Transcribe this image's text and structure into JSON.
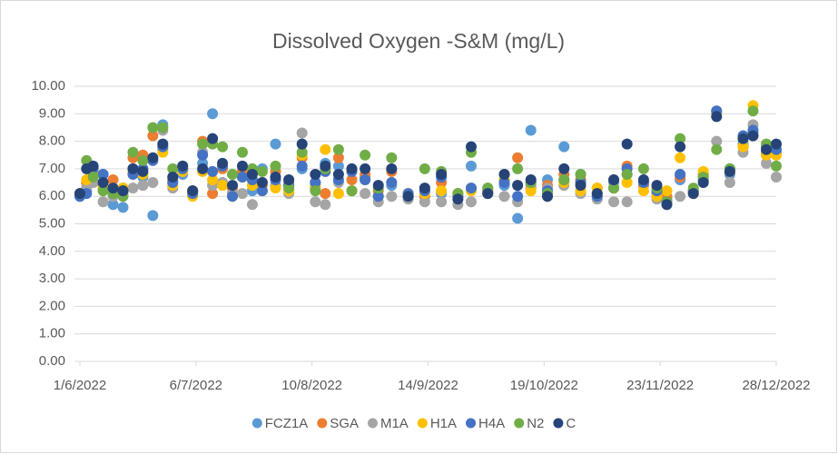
{
  "chart_data": {
    "type": "scatter",
    "title": "Dissolved Oxygen -S&M (mg/L)",
    "x": [
      "2022-06-01",
      "2022-06-03",
      "2022-06-05",
      "2022-06-08",
      "2022-06-11",
      "2022-06-14",
      "2022-06-17",
      "2022-06-20",
      "2022-06-23",
      "2022-06-26",
      "2022-06-29",
      "2022-07-02",
      "2022-07-05",
      "2022-07-08",
      "2022-07-11",
      "2022-07-14",
      "2022-07-17",
      "2022-07-20",
      "2022-07-23",
      "2022-07-26",
      "2022-07-30",
      "2022-08-03",
      "2022-08-07",
      "2022-08-11",
      "2022-08-14",
      "2022-08-18",
      "2022-08-22",
      "2022-08-26",
      "2022-08-30",
      "2022-09-03",
      "2022-09-08",
      "2022-09-13",
      "2022-09-18",
      "2022-09-23",
      "2022-09-27",
      "2022-10-02",
      "2022-10-07",
      "2022-10-11",
      "2022-10-15",
      "2022-10-20",
      "2022-10-25",
      "2022-10-30",
      "2022-11-04",
      "2022-11-09",
      "2022-11-13",
      "2022-11-18",
      "2022-11-22",
      "2022-11-25",
      "2022-11-29",
      "2022-12-03",
      "2022-12-06",
      "2022-12-10",
      "2022-12-14",
      "2022-12-18",
      "2022-12-21",
      "2022-12-25",
      "2022-12-28"
    ],
    "series": [
      {
        "name": "FCZ1A",
        "color": "#5b9bd5",
        "values": [
          6.1,
          6.2,
          6.8,
          6.8,
          5.7,
          5.6,
          7.0,
          6.7,
          5.3,
          8.6,
          6.5,
          6.8,
          6.2,
          7.2,
          9.0,
          6.5,
          6.1,
          6.9,
          6.2,
          7.0,
          7.9,
          6.4,
          7.0,
          6.5,
          7.2,
          7.1,
          6.9,
          6.7,
          6.0,
          6.4,
          6.0,
          6.2,
          6.1,
          6.0,
          7.1,
          6.2,
          6.4,
          5.2,
          8.4,
          6.6,
          7.8,
          6.8,
          6.0,
          6.5,
          6.8,
          6.5,
          6.0,
          5.9,
          6.6,
          6.1,
          6.8,
          9.0,
          6.8,
          7.9,
          8.3,
          7.5,
          7.6
        ]
      },
      {
        "name": "SGA",
        "color": "#ed7d31",
        "values": [
          6.1,
          6.5,
          6.7,
          6.4,
          6.6,
          6.3,
          7.4,
          7.5,
          8.2,
          7.7,
          6.6,
          7.0,
          6.2,
          8.0,
          6.1,
          7.0,
          6.3,
          6.9,
          6.6,
          6.4,
          6.9,
          6.5,
          7.4,
          6.3,
          6.1,
          7.4,
          6.6,
          6.8,
          6.2,
          6.9,
          6.1,
          6.0,
          6.5,
          6.1,
          6.3,
          6.2,
          6.6,
          7.4,
          6.3,
          6.4,
          6.8,
          6.6,
          6.3,
          6.6,
          7.1,
          6.4,
          6.1,
          6.0,
          6.7,
          6.2,
          6.8,
          9.1,
          6.9,
          7.8,
          8.2,
          7.6,
          7.5
        ]
      },
      {
        "name": "M1A",
        "color": "#a5a5a5",
        "values": [
          6.0,
          6.3,
          6.5,
          5.8,
          6.0,
          6.1,
          6.3,
          6.4,
          6.5,
          8.4,
          6.3,
          6.9,
          6.1,
          7.6,
          6.4,
          6.5,
          6.1,
          6.1,
          5.7,
          6.5,
          6.4,
          6.1,
          8.3,
          5.8,
          5.7,
          6.5,
          6.2,
          6.1,
          5.8,
          6.0,
          5.9,
          5.8,
          5.8,
          5.7,
          5.8,
          6.3,
          6.0,
          5.8,
          6.4,
          6.3,
          6.4,
          6.1,
          5.9,
          5.8,
          5.8,
          6.5,
          5.9,
          5.7,
          6.0,
          6.2,
          6.7,
          8.0,
          6.5,
          7.6,
          8.6,
          7.2,
          6.7
        ]
      },
      {
        "name": "H1A",
        "color": "#ffc000",
        "values": [
          6.1,
          6.6,
          6.9,
          6.3,
          6.3,
          6.3,
          6.9,
          6.8,
          7.3,
          7.6,
          6.4,
          6.9,
          6.0,
          6.9,
          6.6,
          6.4,
          6.0,
          6.7,
          6.4,
          6.2,
          6.3,
          6.2,
          7.5,
          6.4,
          7.7,
          6.1,
          6.2,
          6.6,
          6.0,
          6.5,
          6.1,
          6.1,
          6.2,
          6.1,
          6.2,
          6.1,
          6.6,
          6.4,
          6.2,
          6.0,
          6.5,
          6.2,
          6.3,
          6.3,
          6.5,
          6.2,
          6.0,
          6.2,
          7.4,
          6.1,
          6.9,
          9.0,
          6.9,
          7.8,
          9.3,
          7.5,
          7.5
        ]
      },
      {
        "name": "H4A",
        "color": "#4472c4",
        "values": [
          6.0,
          6.1,
          7.0,
          6.8,
          6.1,
          6.2,
          6.8,
          7.0,
          7.3,
          7.8,
          6.5,
          7.0,
          6.1,
          7.5,
          6.9,
          7.1,
          6.0,
          6.7,
          6.6,
          6.2,
          6.6,
          6.4,
          7.1,
          6.5,
          6.9,
          6.6,
          6.9,
          6.6,
          6.0,
          6.5,
          6.1,
          6.2,
          6.7,
          6.0,
          6.3,
          6.1,
          6.5,
          6.0,
          6.5,
          6.2,
          6.6,
          6.5,
          6.0,
          6.3,
          7.0,
          6.5,
          6.2,
          5.8,
          6.8,
          6.2,
          6.6,
          9.1,
          7.0,
          8.2,
          8.4,
          7.8,
          7.7
        ]
      },
      {
        "name": "N2",
        "color": "#70ad47",
        "values": [
          6.1,
          7.3,
          6.7,
          6.2,
          6.1,
          6.0,
          7.6,
          7.3,
          8.5,
          8.5,
          7.0,
          7.1,
          6.2,
          7.9,
          7.9,
          7.8,
          6.8,
          7.6,
          7.0,
          6.9,
          7.1,
          6.3,
          7.6,
          6.2,
          7.0,
          7.7,
          6.2,
          7.5,
          6.3,
          7.4,
          6.0,
          7.0,
          6.9,
          6.1,
          7.6,
          6.3,
          6.8,
          7.0,
          6.5,
          6.1,
          6.6,
          6.8,
          6.1,
          6.3,
          6.8,
          7.0,
          6.3,
          5.8,
          8.1,
          6.3,
          6.7,
          7.7,
          7.0,
          8.1,
          9.1,
          7.9,
          7.1
        ]
      },
      {
        "name": "C",
        "color": "#264478",
        "values": [
          6.1,
          7.0,
          7.1,
          6.5,
          6.3,
          6.2,
          7.0,
          6.9,
          7.4,
          7.9,
          6.7,
          7.1,
          6.2,
          7.0,
          8.1,
          7.2,
          6.4,
          7.1,
          6.8,
          6.5,
          6.7,
          6.6,
          7.9,
          6.8,
          7.1,
          6.8,
          7.0,
          7.0,
          6.4,
          7.0,
          6.0,
          6.3,
          6.8,
          5.9,
          7.8,
          6.1,
          6.8,
          6.4,
          6.6,
          6.0,
          7.0,
          6.4,
          6.1,
          6.6,
          7.9,
          6.6,
          6.4,
          5.7,
          7.8,
          6.1,
          6.5,
          8.9,
          6.9,
          8.1,
          8.2,
          7.7,
          7.9
        ]
      }
    ],
    "xlim": [
      "2022-06-01",
      "2022-12-28"
    ],
    "xticks": [
      {
        "value": "2022-06-01",
        "label": "1/6/2022"
      },
      {
        "value": "2022-07-06",
        "label": "6/7/2022"
      },
      {
        "value": "2022-08-10",
        "label": "10/8/2022"
      },
      {
        "value": "2022-09-14",
        "label": "14/9/2022"
      },
      {
        "value": "2022-10-19",
        "label": "19/10/2022"
      },
      {
        "value": "2022-11-23",
        "label": "23/11/2022"
      },
      {
        "value": "2022-12-28",
        "label": "28/12/2022"
      }
    ],
    "ylim": [
      0,
      10
    ],
    "yticks": [
      {
        "value": 0,
        "label": "0.00"
      },
      {
        "value": 1,
        "label": "1.00"
      },
      {
        "value": 2,
        "label": "2.00"
      },
      {
        "value": 3,
        "label": "3.00"
      },
      {
        "value": 4,
        "label": "4.00"
      },
      {
        "value": 5,
        "label": "5.00"
      },
      {
        "value": 6,
        "label": "6.00"
      },
      {
        "value": 7,
        "label": "7.00"
      },
      {
        "value": 8,
        "label": "8.00"
      },
      {
        "value": 9,
        "label": "9.00"
      },
      {
        "value": 10,
        "label": "10.00"
      }
    ],
    "grid": true,
    "legend": "bottom"
  }
}
